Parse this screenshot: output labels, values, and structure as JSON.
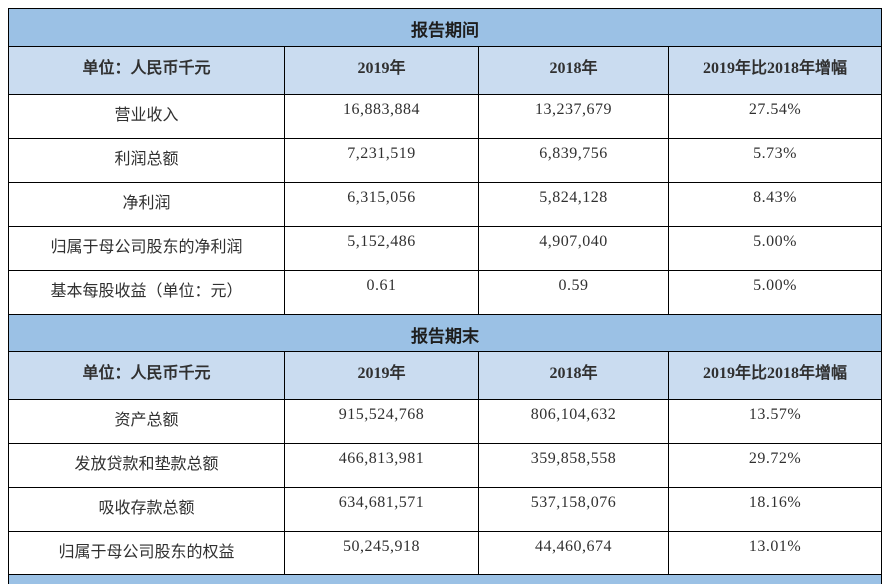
{
  "table": {
    "colors": {
      "band_bg": "#9bc1e5",
      "header_bg": "#cadcf0",
      "border": "#000000",
      "text": "#303030"
    },
    "sections": [
      {
        "band_title": "报告期间",
        "columns": [
          "单位：人民币千元",
          "2019年",
          "2018年",
          "2019年比2018年增幅"
        ],
        "rows": [
          {
            "label": "营业收入",
            "y2019": "16,883,884",
            "y2018": "13,237,679",
            "change": "27.54%"
          },
          {
            "label": "利润总额",
            "y2019": "7,231,519",
            "y2018": "6,839,756",
            "change": "5.73%"
          },
          {
            "label": "净利润",
            "y2019": "6,315,056",
            "y2018": "5,824,128",
            "change": "8.43%"
          },
          {
            "label": "归属于母公司股东的净利润",
            "y2019": "5,152,486",
            "y2018": "4,907,040",
            "change": "5.00%"
          },
          {
            "label": "基本每股收益（单位：元）",
            "y2019": "0.61",
            "y2018": "0.59",
            "change": "5.00%"
          }
        ]
      },
      {
        "band_title": "报告期末",
        "columns": [
          "单位：人民币千元",
          "2019年",
          "2018年",
          "2019年比2018年增幅"
        ],
        "rows": [
          {
            "label": "资产总额",
            "y2019": "915,524,768",
            "y2018": "806,104,632",
            "change": "13.57%"
          },
          {
            "label": "发放贷款和垫款总额",
            "y2019": "466,813,981",
            "y2018": "359,858,558",
            "change": "29.72%"
          },
          {
            "label": "吸收存款总额",
            "y2019": "634,681,571",
            "y2018": "537,158,076",
            "change": "18.16%"
          },
          {
            "label": "归属于母公司股东的权益",
            "y2019": "50,245,918",
            "y2018": "44,460,674",
            "change": "13.01%"
          }
        ]
      }
    ]
  }
}
